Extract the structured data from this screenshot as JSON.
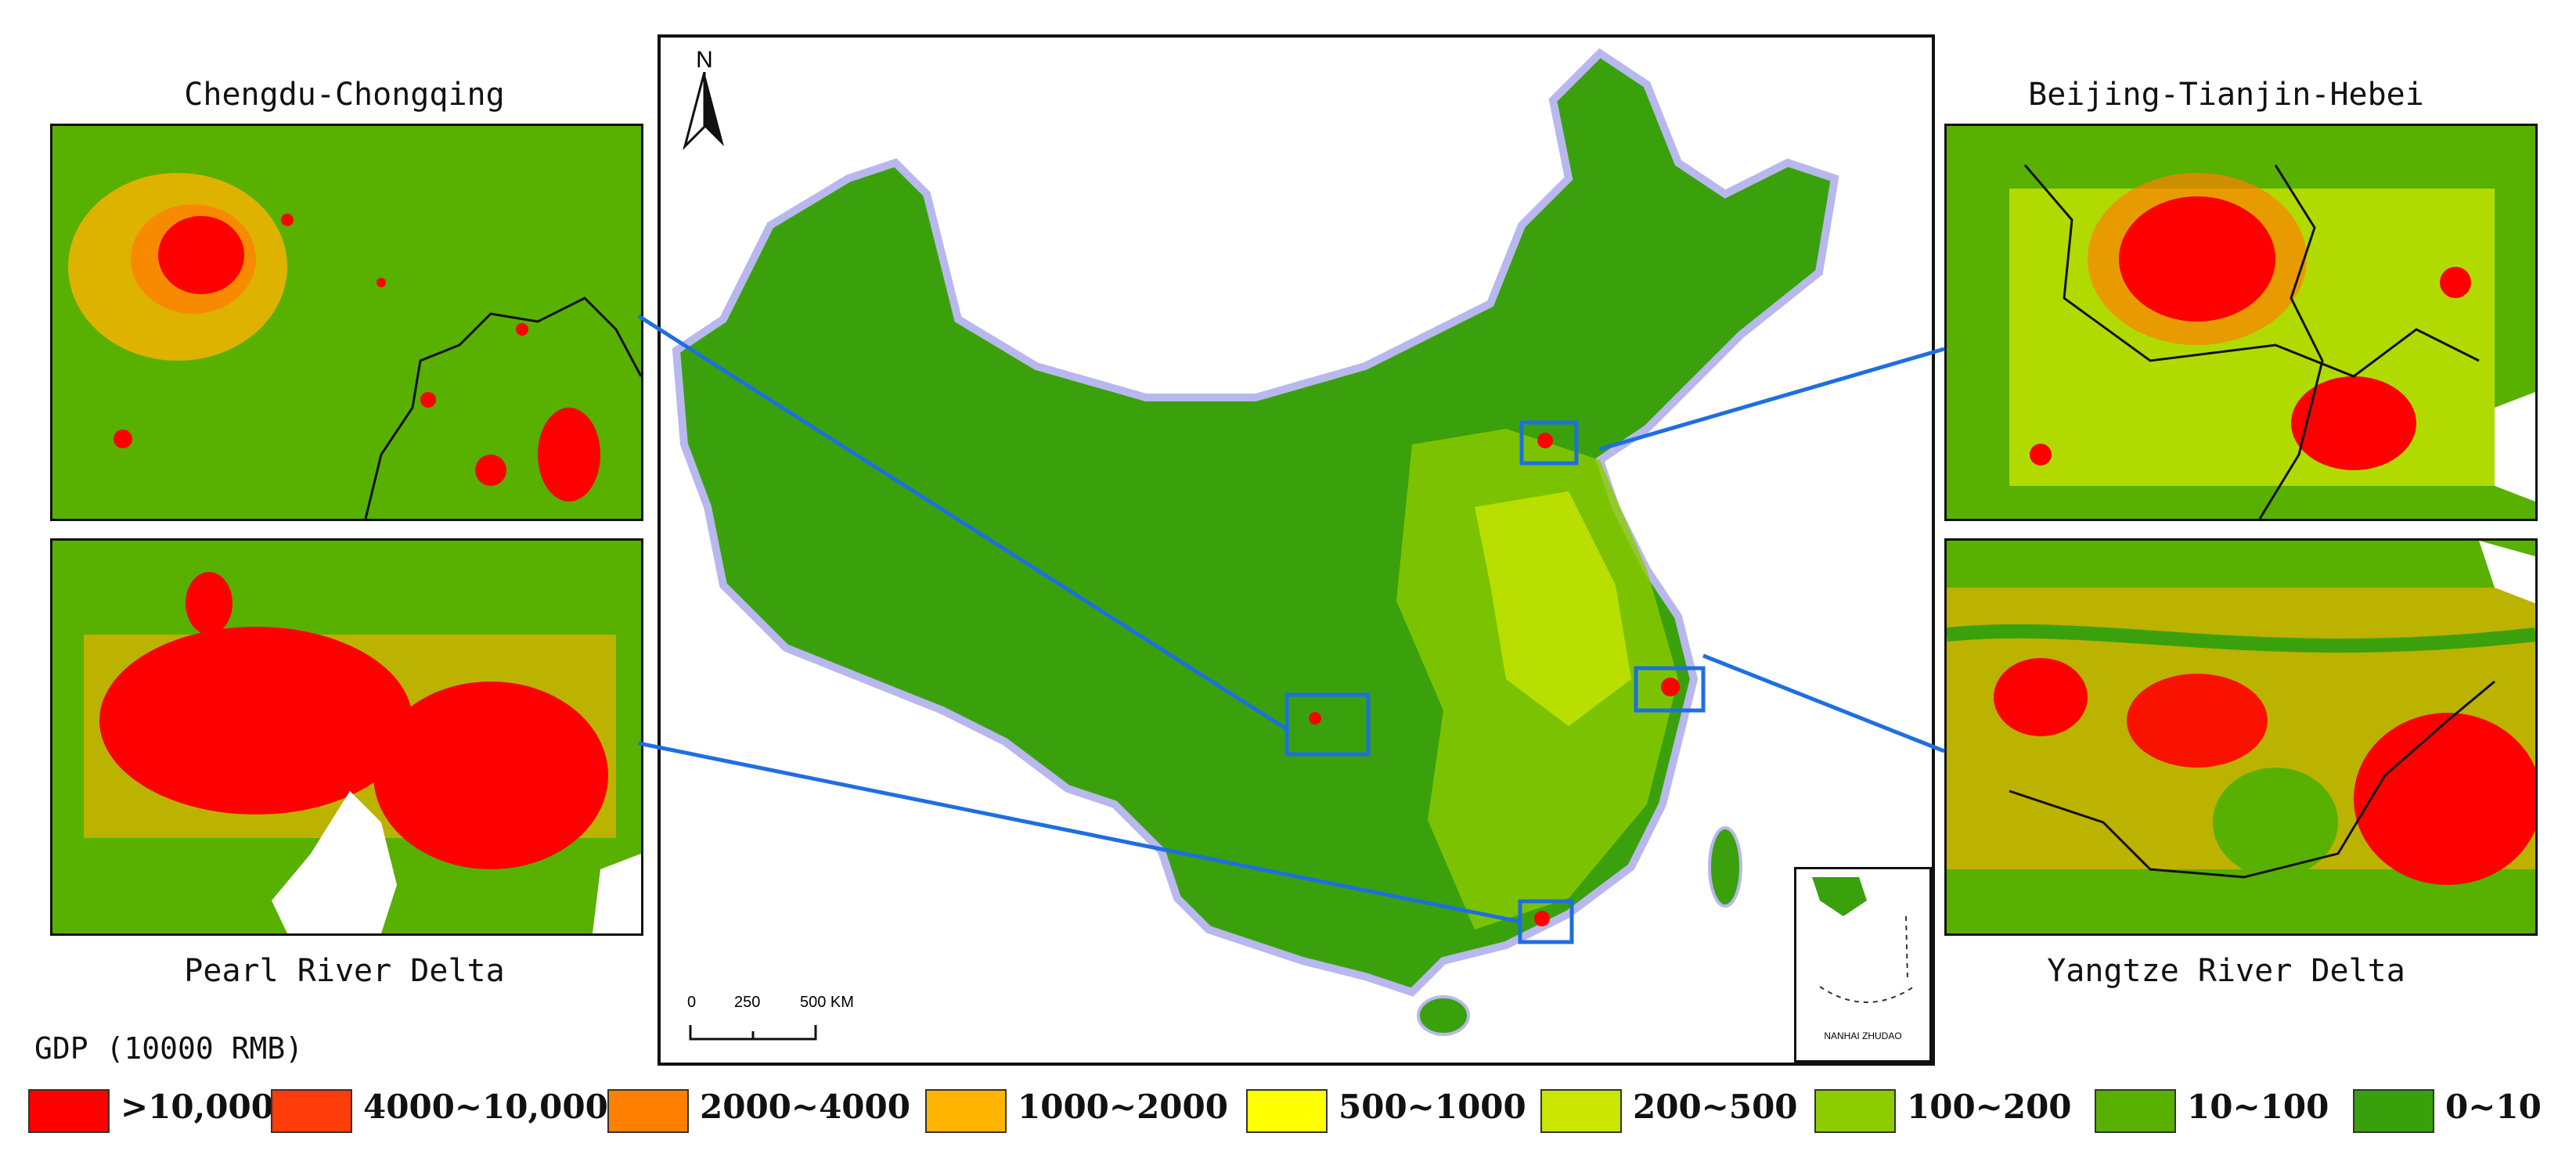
{
  "insets": {
    "chengdu": {
      "title": "Chengdu-Chongqing"
    },
    "beijing": {
      "title": "Beijing-Tianjin-Hebei"
    },
    "pearl": {
      "title": "Pearl River Delta"
    },
    "yangtze": {
      "title": "Yangtze River Delta"
    }
  },
  "map": {
    "north_label": "N",
    "scale": {
      "ticks": [
        "0",
        "250",
        "500 KM"
      ]
    },
    "southsea_label": "NANHAI ZHUDAO"
  },
  "legend": {
    "title": "GDP (10000 RMB)",
    "classes": [
      {
        "label": ">10,000",
        "color": "#ff0000"
      },
      {
        "label": "4000~10,000",
        "color": "#ff3c0a"
      },
      {
        "label": "2000~4000",
        "color": "#ff8000"
      },
      {
        "label": "1000~2000",
        "color": "#ffb400"
      },
      {
        "label": "500~1000",
        "color": "#ffff00"
      },
      {
        "label": "200~500",
        "color": "#c8e600"
      },
      {
        "label": "100~200",
        "color": "#8ccc00"
      },
      {
        "label": "10~100",
        "color": "#58b000"
      },
      {
        "label": "0~10",
        "color": "#38a00a"
      }
    ]
  },
  "colors": {
    "box": "#1e6fe0",
    "land": "#3aa10c",
    "border": "#111111"
  }
}
